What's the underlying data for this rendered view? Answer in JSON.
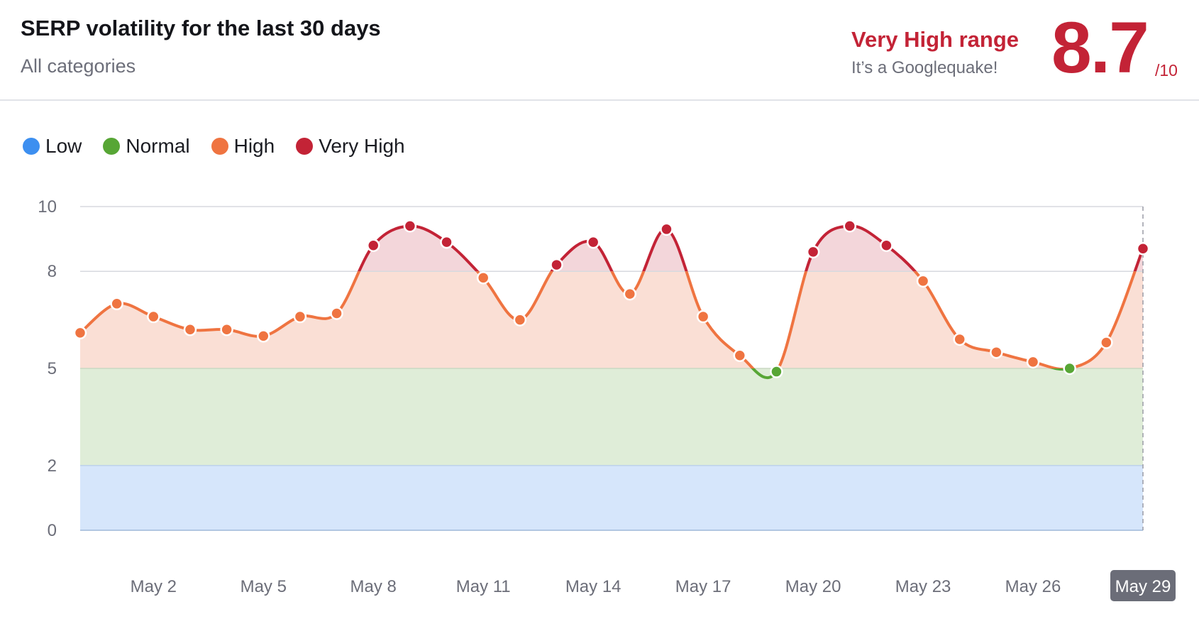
{
  "header": {
    "title": "SERP volatility for the last 30 days",
    "subtitle": "All categories",
    "range_label": "Very High range",
    "range_description": "It’s a Googlequake!",
    "score": "8.7",
    "score_max": "/10"
  },
  "legend": [
    {
      "label": "Low",
      "color": "#3d8ff0"
    },
    {
      "label": "Normal",
      "color": "#57a635"
    },
    {
      "label": "High",
      "color": "#ef7441"
    },
    {
      "label": "Very High",
      "color": "#c32336"
    }
  ],
  "chart_data": {
    "type": "line",
    "title": "SERP volatility for the last 30 days",
    "subtitle": "All categories",
    "xlabel": "",
    "ylabel": "",
    "ylim": [
      0,
      10
    ],
    "y_ticks": [
      0,
      2,
      5,
      8,
      10
    ],
    "x_tick_labels": [
      "May 2",
      "May 5",
      "May 8",
      "May 11",
      "May 14",
      "May 17",
      "May 20",
      "May 23",
      "May 26",
      "May 29"
    ],
    "highlighted_x_label": "May 29",
    "grid": true,
    "legend_position": "top-left",
    "bands": [
      {
        "name": "Low",
        "from": 0,
        "to": 2,
        "color": "#d6e6fb"
      },
      {
        "name": "Normal",
        "from": 2,
        "to": 5,
        "color": "#dfedd8"
      },
      {
        "name": "High",
        "from": 5,
        "to": 8,
        "color": "#fadfd5"
      },
      {
        "name": "Very High",
        "from": 8,
        "to": 10,
        "color": "#f3d6da"
      }
    ],
    "x": [
      "May 0",
      "May 1",
      "May 2",
      "May 3",
      "May 4",
      "May 5",
      "May 6",
      "May 7",
      "May 8",
      "May 9",
      "May 10",
      "May 11",
      "May 12",
      "May 13",
      "May 14",
      "May 15",
      "May 16",
      "May 17",
      "May 18",
      "May 19",
      "May 20",
      "May 21",
      "May 22",
      "May 23",
      "May 24",
      "May 25",
      "May 26",
      "May 27",
      "May 28",
      "May 29"
    ],
    "series": [
      {
        "values": [
          6.1,
          7.0,
          6.6,
          6.2,
          6.2,
          6.0,
          6.6,
          6.7,
          8.8,
          9.4,
          8.9,
          7.8,
          6.5,
          8.2,
          8.9,
          7.3,
          9.3,
          6.6,
          5.4,
          4.9,
          8.6,
          9.4,
          8.8,
          7.7,
          5.9,
          5.5,
          5.2,
          5.0,
          5.8,
          8.7
        ]
      }
    ]
  }
}
